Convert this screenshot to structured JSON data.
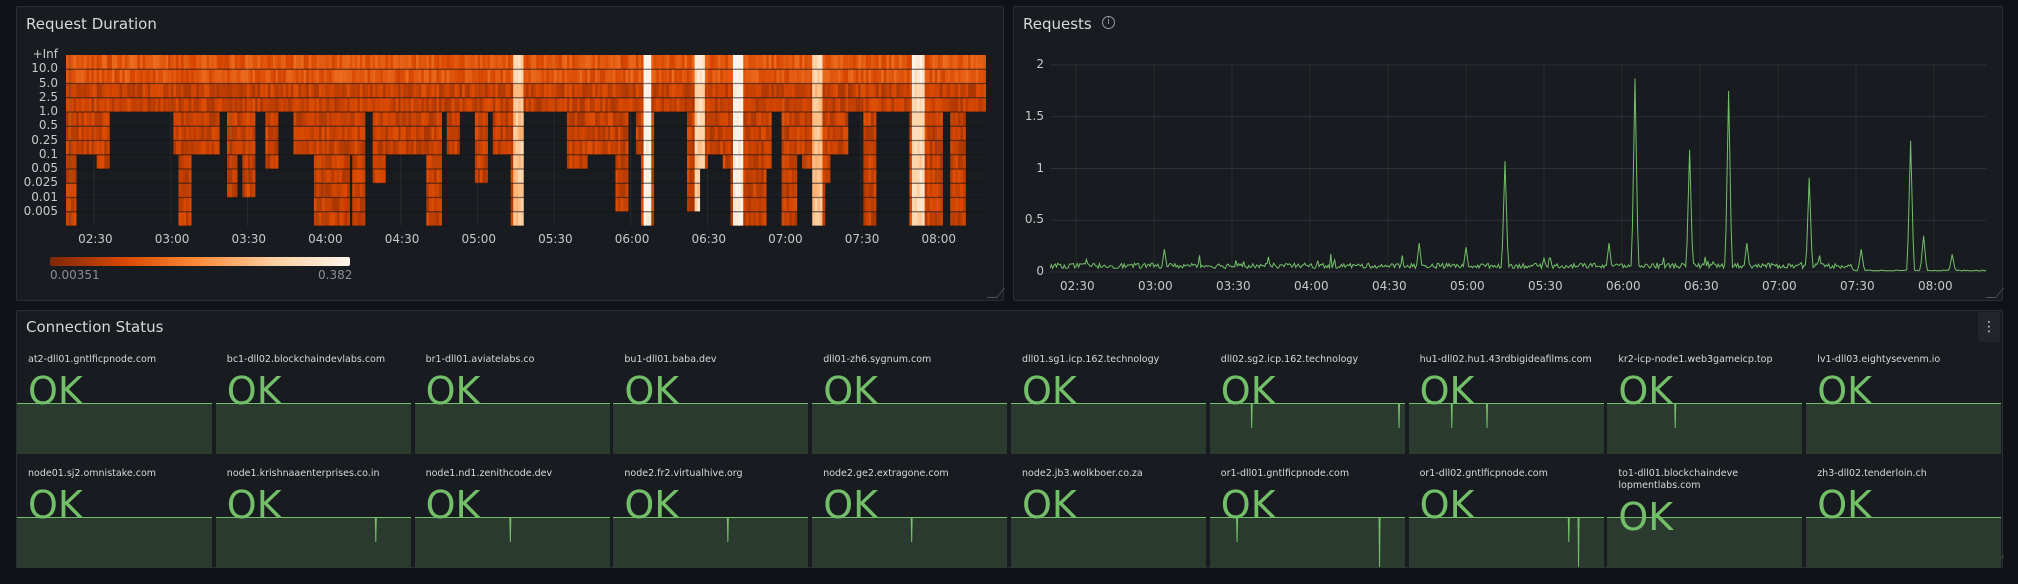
{
  "panels": {
    "request_duration": {
      "title": "Request Duration"
    },
    "requests": {
      "title": "Requests",
      "info_icon": "info-circle-icon"
    },
    "connection_status": {
      "title": "Connection Status",
      "menu_icon": "vertical-ellipsis-icon"
    }
  },
  "chart_data": [
    {
      "type": "heatmap",
      "title": "Request Duration",
      "y_buckets": [
        "+Inf",
        "10.0",
        "5.0",
        "2.5",
        "1.0",
        "0.5",
        "0.25",
        "0.1",
        "0.05",
        "0.025",
        "0.01",
        "0.005"
      ],
      "x_range": [
        "02:19",
        "08:19"
      ],
      "x_ticks": [
        "02:30",
        "03:00",
        "03:30",
        "04:00",
        "04:30",
        "05:00",
        "05:30",
        "06:00",
        "06:30",
        "07:00",
        "07:30",
        "08:00"
      ],
      "color_scale": {
        "min": "0.00351",
        "max": "0.382",
        "scheme": "oranges",
        "colors": [
          "#7f2704",
          "#d94801",
          "#fd8d3c",
          "#fdd0a2",
          "#fff5eb"
        ]
      },
      "default_lowest_bucket": "2.5",
      "filled_segments": [
        {
          "from": "02:19",
          "to": "02:23",
          "lowest_bucket": "0.005"
        },
        {
          "from": "02:23",
          "to": "02:31",
          "lowest_bucket": "0.25"
        },
        {
          "from": "02:31",
          "to": "02:36",
          "lowest_bucket": "0.1"
        },
        {
          "from": "03:01",
          "to": "03:03",
          "lowest_bucket": "0.25"
        },
        {
          "from": "03:03",
          "to": "03:08",
          "lowest_bucket": "0.005"
        },
        {
          "from": "03:08",
          "to": "03:19",
          "lowest_bucket": "0.25"
        },
        {
          "from": "03:22",
          "to": "03:26",
          "lowest_bucket": "0.025"
        },
        {
          "from": "03:26",
          "to": "03:28",
          "lowest_bucket": "0.25"
        },
        {
          "from": "03:28",
          "to": "03:33",
          "lowest_bucket": "0.025"
        },
        {
          "from": "03:37",
          "to": "03:42",
          "lowest_bucket": "0.1"
        },
        {
          "from": "03:48",
          "to": "03:56",
          "lowest_bucket": "0.25"
        },
        {
          "from": "03:56",
          "to": "04:10",
          "lowest_bucket": "0.005"
        },
        {
          "from": "04:10",
          "to": "04:11",
          "lowest_bucket": "0.25"
        },
        {
          "from": "04:11",
          "to": "04:16",
          "lowest_bucket": "0.005"
        },
        {
          "from": "04:19",
          "to": "04:24",
          "lowest_bucket": "0.05"
        },
        {
          "from": "04:24",
          "to": "04:40",
          "lowest_bucket": "0.25"
        },
        {
          "from": "04:40",
          "to": "04:46",
          "lowest_bucket": "0.005"
        },
        {
          "from": "04:48",
          "to": "04:53",
          "lowest_bucket": "0.25"
        },
        {
          "from": "04:59",
          "to": "05:04",
          "lowest_bucket": "0.05"
        },
        {
          "from": "05:06",
          "to": "05:13",
          "lowest_bucket": "0.25"
        },
        {
          "from": "05:13",
          "to": "05:18",
          "lowest_bucket": "0.005"
        },
        {
          "from": "05:35",
          "to": "05:43",
          "lowest_bucket": "0.1"
        },
        {
          "from": "05:43",
          "to": "05:54",
          "lowest_bucket": "0.25"
        },
        {
          "from": "05:54",
          "to": "05:59",
          "lowest_bucket": "0.01"
        },
        {
          "from": "06:02",
          "to": "06:04",
          "lowest_bucket": "0.25"
        },
        {
          "from": "06:04",
          "to": "06:09",
          "lowest_bucket": "0.005"
        },
        {
          "from": "06:22",
          "to": "06:27",
          "lowest_bucket": "0.01"
        },
        {
          "from": "06:27",
          "to": "06:30",
          "lowest_bucket": "0.1"
        },
        {
          "from": "06:30",
          "to": "06:36",
          "lowest_bucket": "0.25"
        },
        {
          "from": "06:36",
          "to": "06:39",
          "lowest_bucket": "0.1"
        },
        {
          "from": "06:39",
          "to": "06:53",
          "lowest_bucket": "0.005"
        },
        {
          "from": "06:53",
          "to": "06:55",
          "lowest_bucket": "0.1"
        },
        {
          "from": "06:59",
          "to": "07:05",
          "lowest_bucket": "0.005"
        },
        {
          "from": "07:05",
          "to": "07:07",
          "lowest_bucket": "0.25"
        },
        {
          "from": "07:07",
          "to": "07:11",
          "lowest_bucket": "0.1"
        },
        {
          "from": "07:11",
          "to": "07:16",
          "lowest_bucket": "0.005"
        },
        {
          "from": "07:16",
          "to": "07:18",
          "lowest_bucket": "0.05"
        },
        {
          "from": "07:18",
          "to": "07:25",
          "lowest_bucket": "0.25"
        },
        {
          "from": "07:31",
          "to": "07:36",
          "lowest_bucket": "0.005"
        },
        {
          "from": "07:49",
          "to": "08:02",
          "lowest_bucket": "0.005"
        },
        {
          "from": "08:05",
          "to": "08:11",
          "lowest_bucket": "0.005"
        }
      ],
      "hot_spots": [
        {
          "from": "05:14",
          "to": "05:18",
          "intensity": 0.6
        },
        {
          "from": "06:05",
          "to": "06:08",
          "intensity": 1.0
        },
        {
          "from": "06:25",
          "to": "06:29",
          "intensity": 0.7
        },
        {
          "from": "06:40",
          "to": "06:44",
          "intensity": 0.95
        },
        {
          "from": "07:11",
          "to": "07:15",
          "intensity": 0.6
        },
        {
          "from": "07:50",
          "to": "07:55",
          "intensity": 0.75
        }
      ]
    },
    {
      "type": "line",
      "title": "Requests",
      "x_range": [
        "02:20",
        "08:20"
      ],
      "x_ticks": [
        "02:30",
        "03:00",
        "03:30",
        "04:00",
        "04:30",
        "05:00",
        "05:30",
        "06:00",
        "06:30",
        "07:00",
        "07:30",
        "08:00"
      ],
      "y_ticks": [
        "0",
        "0.5",
        "1",
        "1.5",
        "2"
      ],
      "ylim": [
        0,
        2
      ],
      "grid": true,
      "color": "#73bf69",
      "baseline": {
        "until": "07:29",
        "value": 0.06,
        "after": 0.01
      },
      "spikes": [
        {
          "time": "03:04",
          "value": 0.22
        },
        {
          "time": "04:42",
          "value": 0.28
        },
        {
          "time": "05:00",
          "value": 0.24
        },
        {
          "time": "05:15",
          "value": 1.07
        },
        {
          "time": "05:55",
          "value": 0.28
        },
        {
          "time": "06:05",
          "value": 1.87
        },
        {
          "time": "06:26",
          "value": 1.18
        },
        {
          "time": "06:41",
          "value": 1.75
        },
        {
          "time": "06:48",
          "value": 0.28
        },
        {
          "time": "07:12",
          "value": 0.91
        },
        {
          "time": "07:32",
          "value": 0.22
        },
        {
          "time": "07:51",
          "value": 1.27
        },
        {
          "time": "07:56",
          "value": 0.35
        },
        {
          "time": "08:07",
          "value": 0.17
        }
      ]
    }
  ],
  "connection_tiles": [
    {
      "name": "at2-dll01.gntlficpnode.com",
      "status": "OK",
      "dips": []
    },
    {
      "name": "bc1-dll02.blockchaindevlabs.com",
      "status": "OK",
      "dips": []
    },
    {
      "name": "br1-dll01.aviatelabs.co",
      "status": "OK",
      "dips": []
    },
    {
      "name": "bu1-dll01.baba.dev",
      "status": "OK",
      "dips": []
    },
    {
      "name": "dll01-zh6.sygnum.com",
      "status": "OK",
      "dips": []
    },
    {
      "name": "dll01.sg1.icp.162.technology",
      "status": "OK",
      "dips": []
    },
    {
      "name": "dll02.sg2.icp.162.technology",
      "status": "OK",
      "dips": [
        {
          "time": "03:37",
          "value": 0.5
        },
        {
          "time": "08:09",
          "value": 0.5
        }
      ]
    },
    {
      "name": "hu1-dll02.hu1.43rdbigideafilms.com",
      "status": "OK",
      "dips": [
        {
          "time": "03:39",
          "value": 0.5
        },
        {
          "time": "04:44",
          "value": 0.5
        }
      ]
    },
    {
      "name": "kr2-icp-node1.web3gameicp.top",
      "status": "OK",
      "dips": [
        {
          "time": "04:26",
          "value": 0.5
        }
      ]
    },
    {
      "name": "lv1-dll03.eightysevenm.io",
      "status": "OK",
      "dips": []
    },
    {
      "name": "node01.sj2.omnistake.com",
      "status": "OK",
      "dips": []
    },
    {
      "name": "node1.krishnaaenterprises.co.in",
      "status": "OK",
      "dips": [
        {
          "time": "07:15",
          "value": 0.5
        }
      ]
    },
    {
      "name": "node1.nd1.zenithcode.dev",
      "status": "OK",
      "dips": [
        {
          "time": "05:16",
          "value": 0.5
        }
      ]
    },
    {
      "name": "node2.fr2.virtualhive.org",
      "status": "OK",
      "dips": [
        {
          "time": "05:52",
          "value": 0.5
        }
      ]
    },
    {
      "name": "node2.ge2.extragone.com",
      "status": "OK",
      "dips": [
        {
          "time": "05:24",
          "value": 0.5
        }
      ]
    },
    {
      "name": "node2.jb3.wolkboer.co.za",
      "status": "OK",
      "dips": []
    },
    {
      "name": "or1-dll01.gntlficpnode.com",
      "status": "OK",
      "dips": [
        {
          "time": "03:10",
          "value": 0.5
        },
        {
          "time": "07:33",
          "value": 0
        }
      ]
    },
    {
      "name": "or1-dll02.gntlficpnode.com",
      "status": "OK",
      "dips": [
        {
          "time": "07:15",
          "value": 0.5
        },
        {
          "time": "07:33",
          "value": 0
        }
      ]
    },
    {
      "name": "to1-dll01.blockchaindevelopmentlabs.com",
      "status": "OK",
      "dips": []
    },
    {
      "name": "zh3-dll02.tenderloin.ch",
      "status": "OK",
      "dips": []
    }
  ],
  "tile_colors": {
    "ok": "#73bf69",
    "fill": "#2a3a2e"
  }
}
